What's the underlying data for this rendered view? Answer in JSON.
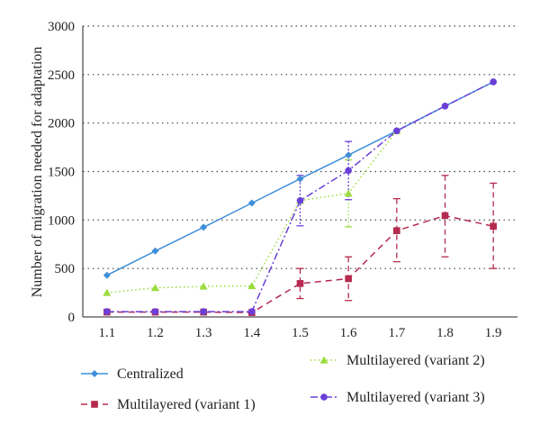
{
  "chart_data": {
    "type": "line",
    "title": "",
    "xlabel": "",
    "ylabel": "Number of migration needed for adaptation",
    "x": [
      1.1,
      1.2,
      1.3,
      1.4,
      1.5,
      1.6,
      1.7,
      1.8,
      1.9
    ],
    "x_tick_labels": [
      "1.1",
      "1.2",
      "1.3",
      "1.4",
      "1.5",
      "1.6",
      "1.7",
      "1.8",
      "1.9"
    ],
    "xlim": [
      1.05,
      1.95
    ],
    "ylim": [
      0,
      3000
    ],
    "y_ticks": [
      0,
      500,
      1000,
      1500,
      2000,
      2500,
      3000
    ],
    "y_tick_labels": [
      "0",
      "500",
      "1000",
      "1500",
      "2000",
      "2500",
      "3000"
    ],
    "grid": "horizontal dotted",
    "legend_position": "bottom",
    "series": [
      {
        "name": "Centralized",
        "color": "#3f8fd8",
        "marker": "diamond",
        "line_style": "solid",
        "values": [
          430,
          680,
          925,
          1175,
          1425,
          1670,
          1920,
          2175,
          2425
        ]
      },
      {
        "name": "Multilayered (variant 1)",
        "color": "#b52a4e",
        "marker": "square",
        "line_style": "dashed",
        "values": [
          50,
          50,
          50,
          45,
          345,
          395,
          890,
          1045,
          935
        ],
        "error_low": [
          0,
          0,
          0,
          0,
          190,
          170,
          570,
          620,
          500
        ],
        "error_high": [
          0,
          0,
          0,
          0,
          500,
          620,
          1220,
          1460,
          1380
        ]
      },
      {
        "name": "Multilayered (variant 2)",
        "color": "#9bdb3c",
        "marker": "triangle",
        "line_style": "dotted",
        "values": [
          250,
          300,
          315,
          320,
          1200,
          1275,
          1920,
          null,
          null
        ],
        "error_low": [
          null,
          null,
          null,
          null,
          null,
          930,
          null,
          null,
          null
        ],
        "error_high": [
          null,
          null,
          null,
          null,
          null,
          1620,
          null,
          null,
          null
        ]
      },
      {
        "name": "Multilayered (variant 3)",
        "color": "#6a3fd8",
        "marker": "circle",
        "line_style": "dashdot",
        "values": [
          55,
          55,
          55,
          55,
          1200,
          1510,
          1920,
          2175,
          2425
        ],
        "error_low": [
          null,
          null,
          null,
          null,
          940,
          1210,
          null,
          null,
          null
        ],
        "error_high": [
          null,
          null,
          null,
          null,
          1460,
          1810,
          null,
          null,
          null
        ]
      }
    ]
  }
}
